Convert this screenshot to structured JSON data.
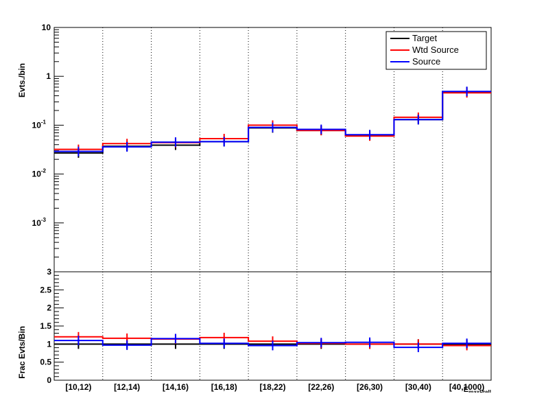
{
  "chart_data": [
    {
      "type": "line",
      "subtype": "step-histogram",
      "title": "",
      "xlabel": "",
      "ylabel": "Evts./bin",
      "yscale": "log",
      "ylim": [
        0.0001,
        10
      ],
      "categories": [
        "[10,12)",
        "[12,14)",
        "[14,16)",
        "[16,18)",
        "[18,22)",
        "[22,26)",
        "[26,30)",
        "[30,40)",
        "[40,1000)"
      ],
      "series": [
        {
          "name": "Target",
          "color": "#000000",
          "values": [
            0.027,
            0.037,
            0.039,
            0.046,
            0.088,
            0.078,
            0.061,
            0.13,
            0.48
          ],
          "errors": true
        },
        {
          "name": "Wtd Source",
          "color": "#ff0000",
          "values": [
            0.032,
            0.042,
            0.044,
            0.053,
            0.1,
            0.078,
            0.06,
            0.145,
            0.46
          ],
          "errors": true
        },
        {
          "name": "Source",
          "color": "#0000ff",
          "values": [
            0.029,
            0.036,
            0.045,
            0.046,
            0.09,
            0.082,
            0.064,
            0.13,
            0.49
          ],
          "errors": true
        }
      ],
      "ytick_labels": [
        {
          "value": 10,
          "label": "10"
        },
        {
          "value": 1,
          "label": "1"
        },
        {
          "value": 0.1,
          "base": "10",
          "exp": "-1"
        },
        {
          "value": 0.01,
          "base": "10",
          "exp": "-2"
        },
        {
          "value": 0.001,
          "base": "10",
          "exp": "-3"
        }
      ],
      "legend": {
        "placement": "top-right",
        "entries": [
          "Target",
          "Wtd Source",
          "Source"
        ]
      },
      "grid": "vertical dotted lines at bin edges"
    },
    {
      "type": "line",
      "subtype": "step-histogram",
      "title": "",
      "ylabel": "Frac Evts/Bin",
      "xlabel": "E_maxFrell",
      "ylim": [
        0,
        3
      ],
      "yticks": [
        "0",
        "0.5",
        "1",
        "1.5",
        "2",
        "2.5",
        "3"
      ],
      "categories": [
        "[10,12)",
        "[12,14)",
        "[14,16)",
        "[16,18)",
        "[18,22)",
        "[22,26)",
        "[26,30)",
        "[30,40)",
        "[40,1000)"
      ],
      "series": [
        {
          "name": "Target",
          "color": "#000000",
          "values": [
            1.0,
            1.0,
            1.0,
            1.0,
            1.0,
            1.0,
            1.0,
            1.0,
            1.0
          ]
        },
        {
          "name": "Wtd Source",
          "color": "#ff0000",
          "values": [
            1.2,
            1.16,
            1.14,
            1.18,
            1.08,
            1.02,
            1.0,
            1.0,
            0.96
          ]
        },
        {
          "name": "Source",
          "color": "#0000ff",
          "values": [
            1.1,
            0.97,
            1.15,
            1.02,
            0.96,
            1.04,
            1.05,
            0.91,
            1.02
          ]
        }
      ],
      "grid": "vertical dotted lines at bin edges"
    }
  ],
  "xaxis_title": {
    "base": "E",
    "sub": "maxFrell"
  }
}
